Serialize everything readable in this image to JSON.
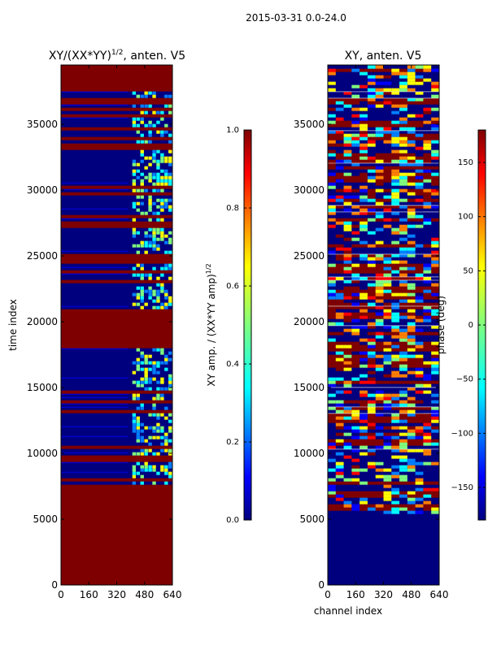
{
  "figure": {
    "suptitle": "2015-03-31 0.0-24.0"
  },
  "colors": {
    "jet": [
      "#00007f",
      "#0000ff",
      "#007fff",
      "#00ffff",
      "#7fff7f",
      "#ffff00",
      "#ff7f00",
      "#ff0000",
      "#7f0000"
    ],
    "axis": "#000000",
    "background": "#ffffff"
  },
  "chart_data": [
    {
      "type": "heatmap",
      "title": "XY/(XX*YY)^{1/2}, anten. V5",
      "title_main": "XY/(XX*YY)",
      "title_sup": "1/2",
      "title_tail": ", anten. V5",
      "xlabel": "",
      "ylabel": "time index",
      "xlim": [
        0,
        640
      ],
      "ylim": [
        0,
        39500
      ],
      "xticks": [
        0,
        160,
        320,
        480,
        640
      ],
      "yticks": [
        0,
        5000,
        10000,
        15000,
        20000,
        25000,
        30000,
        35000
      ],
      "colorbar": {
        "label": "XY amp. / (XX*YY amp)^{1/2}",
        "label_main": "XY amp. / (XX*YY amp)",
        "label_sup": "1/2",
        "range": [
          0.0,
          1.0
        ],
        "ticks": [
          0.0,
          0.2,
          0.4,
          0.6,
          0.8,
          1.0
        ],
        "tick_labels": [
          "0.0",
          "0.2",
          "0.4",
          "0.6",
          "0.8",
          "1.0"
        ]
      }
    },
    {
      "type": "heatmap",
      "title": "XY, anten. V5",
      "xlabel": "channel index",
      "ylabel": "",
      "xlim": [
        0,
        640
      ],
      "ylim": [
        0,
        39500
      ],
      "xticks": [
        0,
        160,
        320,
        480,
        640
      ],
      "yticks": [
        0,
        5000,
        10000,
        15000,
        20000,
        25000,
        30000,
        35000
      ],
      "colorbar": {
        "label": "phase (deg)",
        "range": [
          -180,
          180
        ],
        "ticks": [
          -150,
          -100,
          -50,
          0,
          50,
          100,
          150
        ],
        "tick_labels": [
          "−150",
          "−100",
          "−50",
          "0",
          "50",
          "100",
          "150"
        ]
      }
    }
  ]
}
